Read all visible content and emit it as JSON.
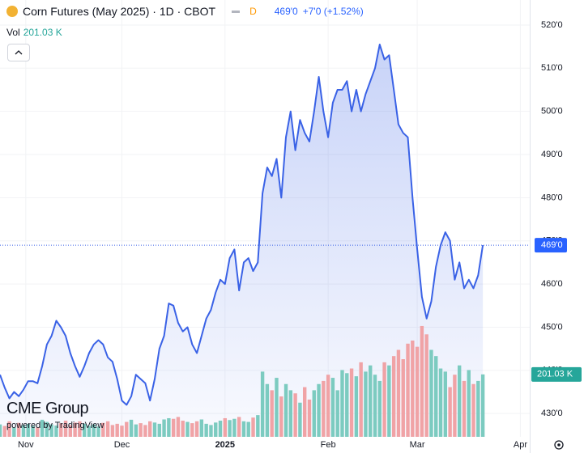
{
  "chart_data": {
    "type": "line",
    "title": "Corn Futures (May 2025) · 1D · CBOT",
    "interval_badge": "D",
    "header_price": "469'0",
    "header_change": "+7'0 (+1.52%)",
    "volume_title": "Vol",
    "volume_label": "201.03 K",
    "last_price_label": "469'0",
    "logo": "CME Group",
    "powered_by": "powered by TradingView",
    "line_color": "#3a62e6",
    "up_color": "#7ccbc0",
    "down_color": "#f0a3a6",
    "grid": true,
    "xlim": [
      0,
      113
    ],
    "xticks": [
      {
        "value": 5.5,
        "label": "Nov"
      },
      {
        "value": 26,
        "label": "Dec"
      },
      {
        "value": 48,
        "label": "2025"
      },
      {
        "value": 70,
        "label": "Feb"
      },
      {
        "value": 89,
        "label": "Mar"
      },
      {
        "value": 111,
        "label": "Apr"
      }
    ],
    "ylim": [
      424.6,
      525.8
    ],
    "yticks": [
      {
        "value": 430,
        "label": "430'0"
      },
      {
        "value": 440,
        "label": "440'0"
      },
      {
        "value": 450,
        "label": "450'0"
      },
      {
        "value": 460,
        "label": "460'0"
      },
      {
        "value": 470,
        "label": "470'0"
      },
      {
        "value": 480,
        "label": "480'0"
      },
      {
        "value": 490,
        "label": "490'0"
      },
      {
        "value": 500,
        "label": "500'0"
      },
      {
        "value": 510,
        "label": "510'0"
      },
      {
        "value": 520,
        "label": "520'0"
      }
    ],
    "volume_ylim": [
      0,
      560
    ],
    "series": [
      {
        "name": "Price",
        "values": [
          439,
          436,
          433.5,
          435,
          434,
          435.5,
          437.5,
          437.5,
          437,
          441,
          446,
          448,
          451.5,
          450,
          448,
          444,
          441,
          438.5,
          441,
          444,
          446,
          447,
          446,
          443,
          442,
          438,
          433,
          432,
          434,
          439,
          438,
          437,
          433,
          438,
          445,
          448,
          455.5,
          455,
          451,
          449,
          450,
          446,
          444,
          448,
          452,
          454,
          458,
          461,
          460,
          466,
          468,
          458.5,
          465,
          466,
          463,
          465,
          481,
          487,
          485,
          489,
          480,
          494,
          500,
          491,
          498,
          495,
          493,
          500,
          508,
          500,
          494,
          502,
          505,
          505,
          507,
          500,
          505,
          500,
          504,
          507,
          510,
          515.5,
          512,
          513,
          505,
          497,
          495,
          494,
          480,
          468,
          457,
          452,
          456,
          464,
          469,
          472,
          470,
          461,
          465,
          459,
          461,
          459,
          462,
          469
        ]
      },
      {
        "name": "Vol",
        "values": [
          40,
          35,
          50,
          30,
          45,
          38,
          42,
          35,
          30,
          55,
          48,
          40,
          36,
          44,
          52,
          38,
          46,
          50,
          42,
          35,
          40,
          33,
          45,
          50,
          38,
          42,
          36,
          48,
          55,
          40,
          44,
          38,
          50,
          46,
          42,
          56,
          60,
          58,
          64,
          52,
          48,
          44,
          50,
          56,
          42,
          38,
          46,
          52,
          60,
          54,
          58,
          64,
          50,
          48,
          62,
          70,
          210,
          170,
          150,
          190,
          130,
          170,
          150,
          140,
          110,
          160,
          120,
          150,
          170,
          180,
          200,
          190,
          150,
          215,
          205,
          220,
          195,
          240,
          210,
          230,
          200,
          180,
          240,
          230,
          260,
          280,
          250,
          300,
          310,
          290,
          357,
          330,
          280,
          260,
          220,
          210,
          160,
          200,
          230,
          180,
          215,
          170,
          180,
          201.03
        ]
      }
    ]
  }
}
